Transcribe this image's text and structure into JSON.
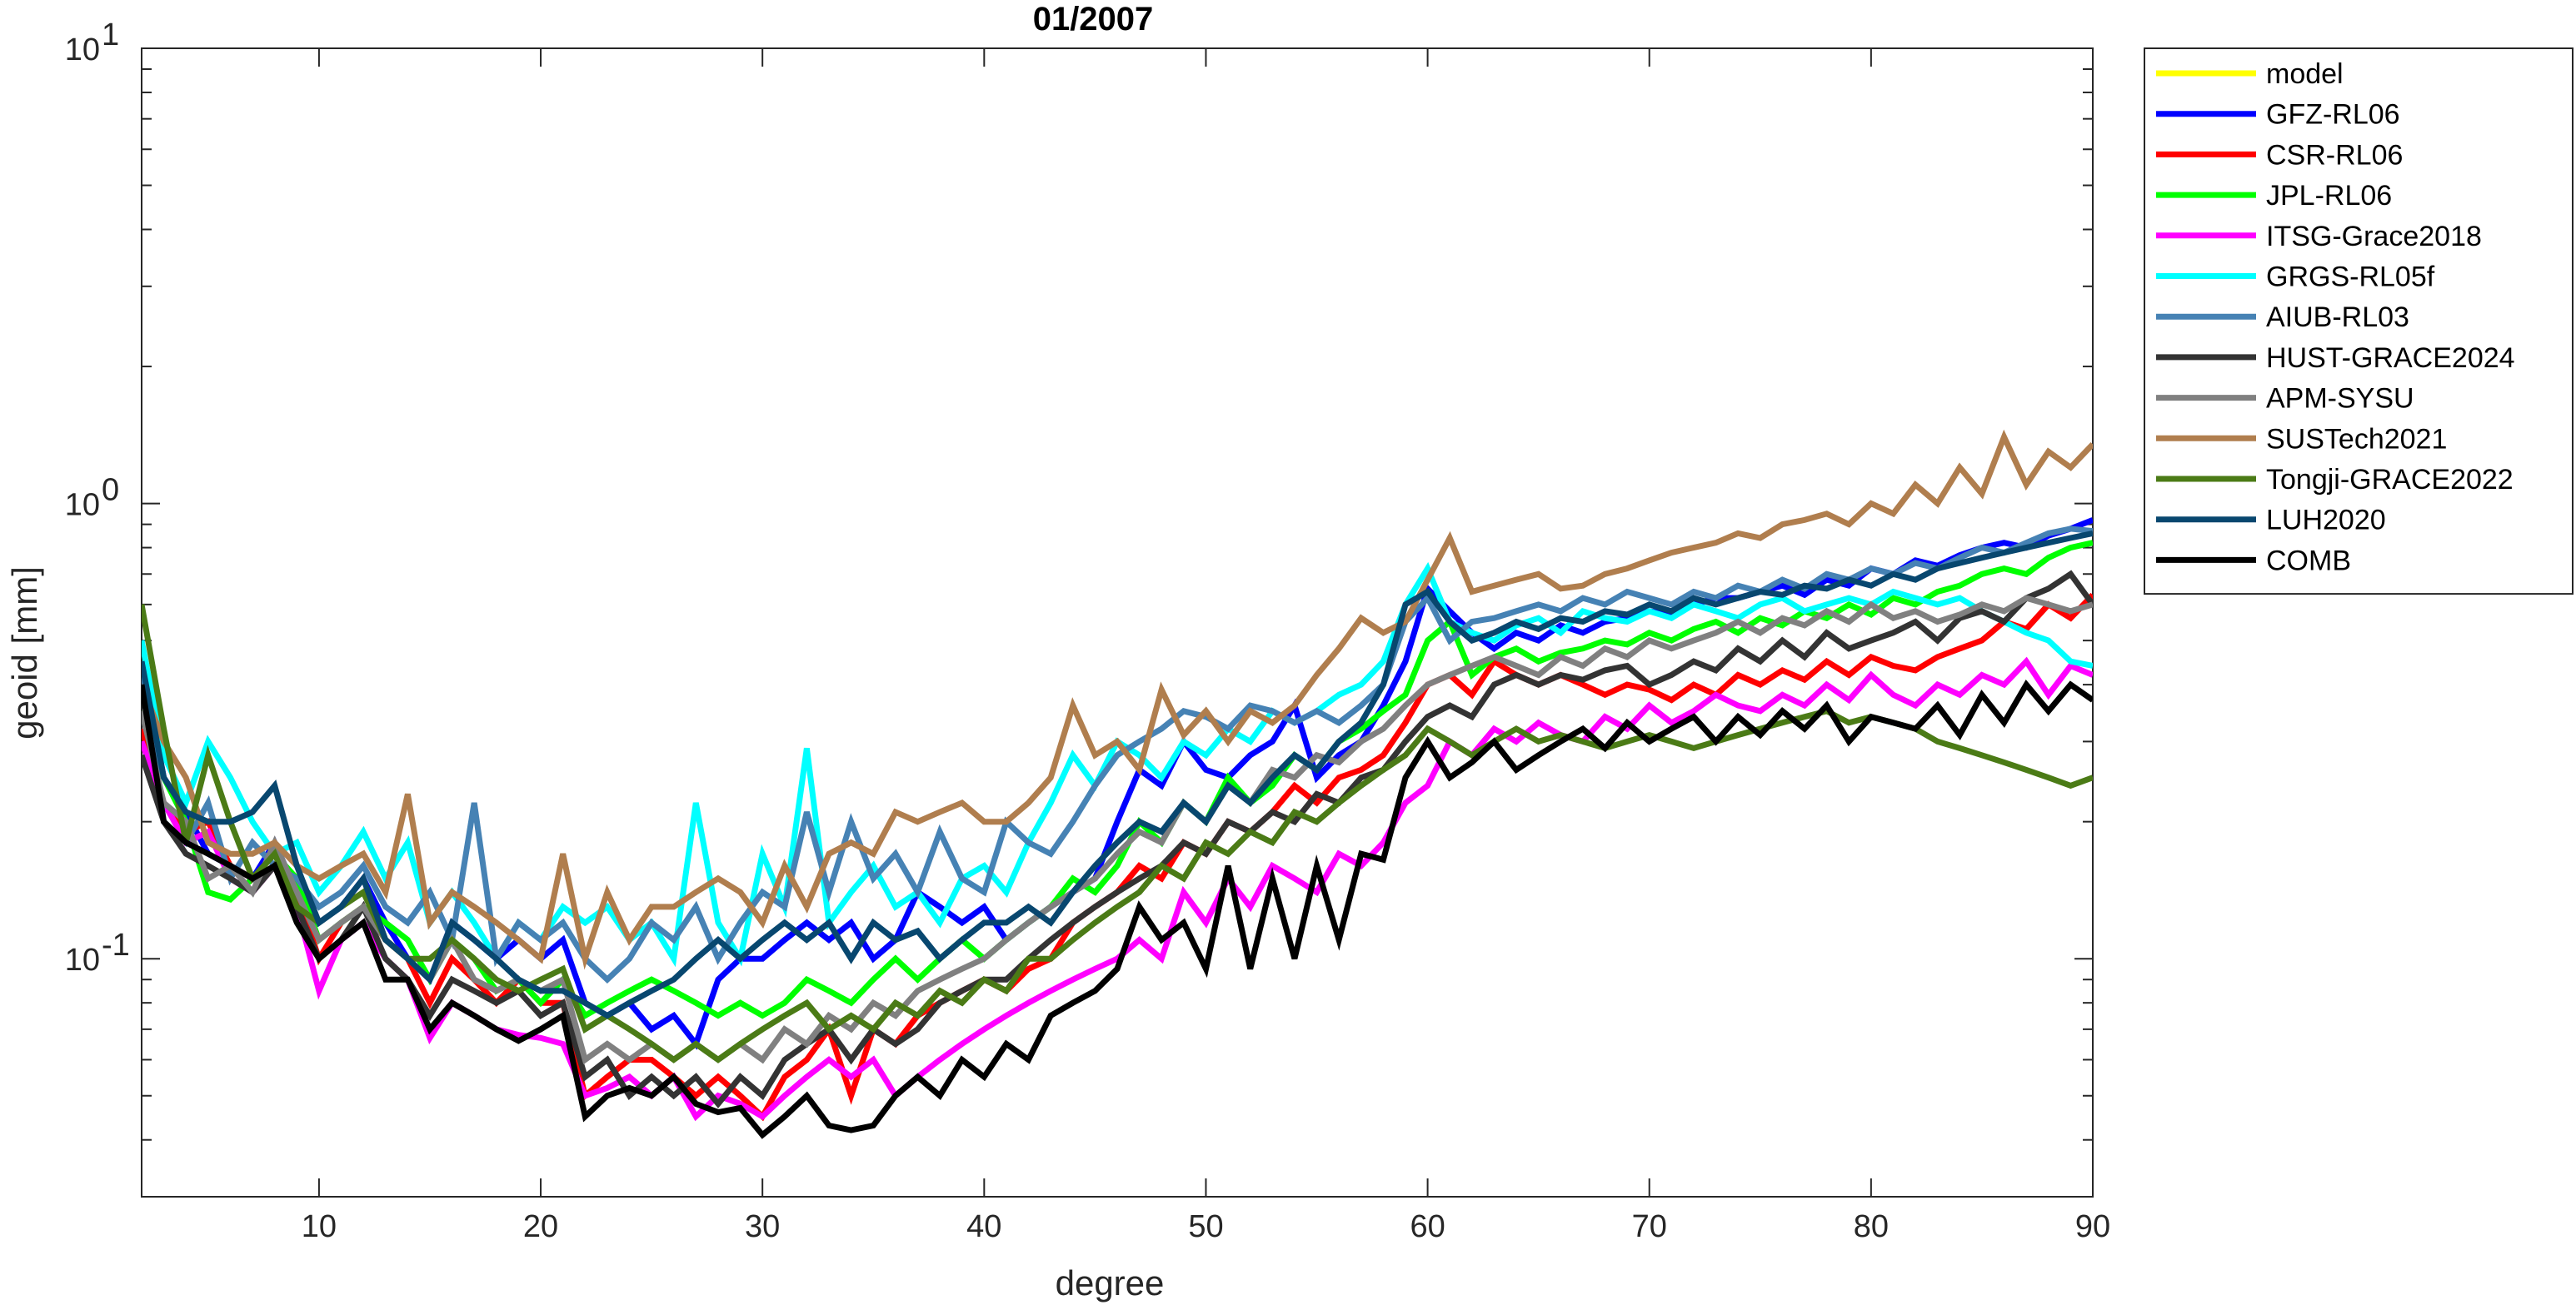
{
  "chart_data": {
    "type": "line",
    "title": "01/2007",
    "xlabel": "degree",
    "ylabel": "geoid [mm]",
    "xlim": [
      2,
      90
    ],
    "ylim": [
      0.03,
      10
    ],
    "yscale": "log",
    "xticks": [
      10,
      20,
      30,
      40,
      50,
      60,
      70,
      80,
      90
    ],
    "xtick_labels": [
      "10",
      "20",
      "30",
      "40",
      "50",
      "60",
      "70",
      "80",
      "90"
    ],
    "yticks": [
      {
        "value": 10,
        "base": "10",
        "exp": "1"
      },
      {
        "value": 1,
        "base": "10",
        "exp": "0"
      },
      {
        "value": 0.1,
        "base": "10",
        "exp": "-1"
      }
    ],
    "legend_position": "outside-right-top",
    "x": {
      "start": 2,
      "end": 90,
      "step": 1
    },
    "series": [
      {
        "name": "model",
        "color": "#FFFF00",
        "values": []
      },
      {
        "name": "GFZ-RL06",
        "color": "#0000FF",
        "values": [
          0.45,
          0.25,
          0.21,
          0.17,
          0.16,
          0.15,
          0.18,
          0.14,
          0.12,
          0.13,
          0.15,
          0.12,
          0.1,
          0.09,
          0.12,
          0.11,
          0.1,
          0.11,
          0.1,
          0.11,
          0.08,
          0.075,
          0.08,
          0.07,
          0.075,
          0.065,
          0.09,
          0.1,
          0.1,
          0.11,
          0.12,
          0.11,
          0.12,
          0.1,
          0.11,
          0.14,
          0.13,
          0.12,
          0.13,
          0.11,
          0.12,
          0.13,
          0.14,
          0.15,
          0.2,
          0.26,
          0.24,
          0.3,
          0.26,
          0.25,
          0.28,
          0.3,
          0.36,
          0.25,
          0.28,
          0.3,
          0.36,
          0.45,
          0.65,
          0.58,
          0.52,
          0.48,
          0.52,
          0.5,
          0.54,
          0.52,
          0.55,
          0.56,
          0.58,
          0.57,
          0.6,
          0.62,
          0.62,
          0.64,
          0.66,
          0.63,
          0.68,
          0.66,
          0.72,
          0.7,
          0.75,
          0.73,
          0.77,
          0.8,
          0.82,
          0.8,
          0.85,
          0.88,
          0.92
        ]
      },
      {
        "name": "CSR-RL06",
        "color": "#FF0000",
        "values": [
          0.32,
          0.22,
          0.19,
          0.2,
          0.16,
          0.15,
          0.17,
          0.14,
          0.1,
          0.12,
          0.13,
          0.11,
          0.1,
          0.08,
          0.1,
          0.09,
          0.08,
          0.09,
          0.08,
          0.08,
          0.05,
          0.055,
          0.06,
          0.06,
          0.055,
          0.05,
          0.055,
          0.05,
          0.045,
          0.055,
          0.06,
          0.07,
          0.05,
          0.07,
          0.065,
          0.075,
          0.08,
          0.085,
          0.09,
          0.085,
          0.095,
          0.1,
          0.12,
          0.13,
          0.14,
          0.16,
          0.15,
          0.18,
          0.17,
          0.2,
          0.19,
          0.21,
          0.24,
          0.22,
          0.25,
          0.26,
          0.28,
          0.33,
          0.4,
          0.42,
          0.38,
          0.45,
          0.42,
          0.4,
          0.42,
          0.4,
          0.38,
          0.4,
          0.39,
          0.37,
          0.4,
          0.38,
          0.42,
          0.4,
          0.43,
          0.41,
          0.45,
          0.42,
          0.46,
          0.44,
          0.43,
          0.46,
          0.48,
          0.5,
          0.55,
          0.53,
          0.6,
          0.56,
          0.63
        ]
      },
      {
        "name": "JPL-RL06",
        "color": "#00FF00",
        "values": [
          0.35,
          0.25,
          0.2,
          0.14,
          0.135,
          0.15,
          0.17,
          0.15,
          0.11,
          0.12,
          0.13,
          0.12,
          0.11,
          0.09,
          0.11,
          0.1,
          0.085,
          0.09,
          0.08,
          0.09,
          0.075,
          0.08,
          0.085,
          0.09,
          0.085,
          0.08,
          0.075,
          0.08,
          0.075,
          0.08,
          0.09,
          0.085,
          0.08,
          0.09,
          0.1,
          0.09,
          0.1,
          0.11,
          0.1,
          0.11,
          0.12,
          0.13,
          0.15,
          0.14,
          0.16,
          0.2,
          0.18,
          0.22,
          0.2,
          0.25,
          0.22,
          0.24,
          0.28,
          0.26,
          0.3,
          0.32,
          0.35,
          0.38,
          0.5,
          0.55,
          0.42,
          0.46,
          0.48,
          0.45,
          0.47,
          0.48,
          0.5,
          0.49,
          0.52,
          0.5,
          0.53,
          0.55,
          0.52,
          0.56,
          0.54,
          0.58,
          0.56,
          0.6,
          0.57,
          0.62,
          0.6,
          0.64,
          0.66,
          0.7,
          0.72,
          0.7,
          0.76,
          0.8,
          0.82
        ]
      },
      {
        "name": "ITSG-Grace2018",
        "color": "#FF00FF",
        "values": [
          0.3,
          0.22,
          0.18,
          0.19,
          0.15,
          0.14,
          0.16,
          0.13,
          0.085,
          0.11,
          0.12,
          0.1,
          0.09,
          0.067,
          0.08,
          0.075,
          0.07,
          0.068,
          0.067,
          0.065,
          0.05,
          0.052,
          0.055,
          0.05,
          0.055,
          0.045,
          0.05,
          0.048,
          0.045,
          0.05,
          0.055,
          0.06,
          0.055,
          0.06,
          0.05,
          0.055,
          0.06,
          0.065,
          0.07,
          0.075,
          0.08,
          0.085,
          0.09,
          0.095,
          0.1,
          0.11,
          0.1,
          0.14,
          0.12,
          0.15,
          0.13,
          0.16,
          0.15,
          0.14,
          0.17,
          0.16,
          0.18,
          0.22,
          0.24,
          0.3,
          0.28,
          0.32,
          0.3,
          0.33,
          0.31,
          0.3,
          0.34,
          0.32,
          0.36,
          0.33,
          0.35,
          0.38,
          0.36,
          0.35,
          0.38,
          0.36,
          0.4,
          0.37,
          0.42,
          0.38,
          0.36,
          0.4,
          0.38,
          0.42,
          0.4,
          0.45,
          0.38,
          0.44,
          0.42
        ]
      },
      {
        "name": "GRGS-RL05f",
        "color": "#00FFFF",
        "values": [
          0.5,
          0.28,
          0.22,
          0.3,
          0.25,
          0.2,
          0.17,
          0.18,
          0.14,
          0.16,
          0.19,
          0.15,
          0.18,
          0.12,
          0.14,
          0.12,
          0.1,
          0.12,
          0.11,
          0.13,
          0.12,
          0.13,
          0.11,
          0.12,
          0.1,
          0.22,
          0.12,
          0.1,
          0.17,
          0.13,
          0.29,
          0.12,
          0.14,
          0.16,
          0.13,
          0.14,
          0.12,
          0.15,
          0.16,
          0.14,
          0.18,
          0.22,
          0.28,
          0.24,
          0.3,
          0.28,
          0.25,
          0.3,
          0.28,
          0.32,
          0.3,
          0.35,
          0.33,
          0.35,
          0.38,
          0.4,
          0.45,
          0.6,
          0.72,
          0.55,
          0.52,
          0.5,
          0.54,
          0.56,
          0.52,
          0.58,
          0.56,
          0.55,
          0.58,
          0.56,
          0.6,
          0.58,
          0.56,
          0.6,
          0.62,
          0.58,
          0.6,
          0.62,
          0.6,
          0.64,
          0.62,
          0.6,
          0.62,
          0.58,
          0.55,
          0.52,
          0.5,
          0.45,
          0.44
        ]
      },
      {
        "name": "AIUB-RL03",
        "color": "#4682B4",
        "values": [
          0.45,
          0.2,
          0.18,
          0.22,
          0.15,
          0.18,
          0.16,
          0.15,
          0.13,
          0.14,
          0.16,
          0.13,
          0.12,
          0.14,
          0.11,
          0.22,
          0.1,
          0.12,
          0.11,
          0.12,
          0.1,
          0.09,
          0.1,
          0.12,
          0.11,
          0.13,
          0.1,
          0.12,
          0.14,
          0.13,
          0.21,
          0.14,
          0.2,
          0.15,
          0.17,
          0.14,
          0.19,
          0.15,
          0.14,
          0.2,
          0.18,
          0.17,
          0.2,
          0.24,
          0.28,
          0.3,
          0.32,
          0.35,
          0.34,
          0.32,
          0.36,
          0.35,
          0.33,
          0.35,
          0.33,
          0.36,
          0.4,
          0.55,
          0.62,
          0.5,
          0.55,
          0.56,
          0.58,
          0.6,
          0.58,
          0.62,
          0.6,
          0.64,
          0.62,
          0.6,
          0.64,
          0.62,
          0.66,
          0.64,
          0.68,
          0.65,
          0.7,
          0.68,
          0.72,
          0.7,
          0.74,
          0.72,
          0.76,
          0.8,
          0.78,
          0.82,
          0.86,
          0.88,
          0.87
        ]
      },
      {
        "name": "HUST-GRACE2024",
        "color": "#333333",
        "values": [
          0.28,
          0.2,
          0.17,
          0.16,
          0.15,
          0.14,
          0.16,
          0.13,
          0.1,
          0.11,
          0.13,
          0.1,
          0.09,
          0.075,
          0.09,
          0.085,
          0.08,
          0.085,
          0.075,
          0.08,
          0.055,
          0.06,
          0.05,
          0.055,
          0.05,
          0.055,
          0.048,
          0.055,
          0.05,
          0.06,
          0.065,
          0.07,
          0.06,
          0.07,
          0.065,
          0.07,
          0.08,
          0.085,
          0.09,
          0.09,
          0.1,
          0.11,
          0.12,
          0.13,
          0.14,
          0.15,
          0.16,
          0.18,
          0.17,
          0.2,
          0.19,
          0.21,
          0.2,
          0.23,
          0.22,
          0.25,
          0.26,
          0.3,
          0.34,
          0.36,
          0.34,
          0.4,
          0.42,
          0.4,
          0.42,
          0.41,
          0.43,
          0.44,
          0.4,
          0.42,
          0.45,
          0.43,
          0.48,
          0.45,
          0.5,
          0.46,
          0.52,
          0.48,
          0.5,
          0.52,
          0.55,
          0.5,
          0.56,
          0.58,
          0.55,
          0.62,
          0.65,
          0.7,
          0.6
        ]
      },
      {
        "name": "APM-SYSU",
        "color": "#808080",
        "values": [
          0.35,
          0.22,
          0.2,
          0.15,
          0.16,
          0.14,
          0.18,
          0.14,
          0.11,
          0.12,
          0.13,
          0.11,
          0.1,
          0.09,
          0.11,
          0.09,
          0.085,
          0.09,
          0.085,
          0.09,
          0.06,
          0.065,
          0.06,
          0.065,
          0.06,
          0.065,
          0.06,
          0.065,
          0.06,
          0.07,
          0.065,
          0.075,
          0.07,
          0.08,
          0.075,
          0.085,
          0.09,
          0.095,
          0.1,
          0.11,
          0.12,
          0.13,
          0.14,
          0.15,
          0.17,
          0.19,
          0.18,
          0.22,
          0.2,
          0.24,
          0.22,
          0.26,
          0.25,
          0.28,
          0.27,
          0.3,
          0.32,
          0.36,
          0.4,
          0.42,
          0.44,
          0.46,
          0.44,
          0.42,
          0.46,
          0.44,
          0.48,
          0.46,
          0.5,
          0.48,
          0.5,
          0.52,
          0.55,
          0.52,
          0.56,
          0.54,
          0.58,
          0.55,
          0.6,
          0.56,
          0.58,
          0.55,
          0.57,
          0.6,
          0.58,
          0.62,
          0.6,
          0.58,
          0.6
        ]
      },
      {
        "name": "SUSTech2021",
        "color": "#B07E4E",
        "values": [
          0.4,
          0.3,
          0.25,
          0.18,
          0.17,
          0.17,
          0.18,
          0.16,
          0.15,
          0.16,
          0.17,
          0.14,
          0.23,
          0.12,
          0.14,
          0.13,
          0.12,
          0.11,
          0.1,
          0.17,
          0.1,
          0.14,
          0.11,
          0.13,
          0.13,
          0.14,
          0.15,
          0.14,
          0.12,
          0.16,
          0.13,
          0.17,
          0.18,
          0.17,
          0.21,
          0.2,
          0.21,
          0.22,
          0.2,
          0.2,
          0.22,
          0.25,
          0.36,
          0.28,
          0.3,
          0.26,
          0.39,
          0.31,
          0.35,
          0.3,
          0.35,
          0.33,
          0.36,
          0.42,
          0.48,
          0.56,
          0.52,
          0.55,
          0.68,
          0.84,
          0.64,
          0.66,
          0.68,
          0.7,
          0.65,
          0.66,
          0.7,
          0.72,
          0.75,
          0.78,
          0.8,
          0.82,
          0.86,
          0.84,
          0.9,
          0.92,
          0.95,
          0.9,
          1.0,
          0.95,
          1.1,
          1.0,
          1.2,
          1.05,
          1.4,
          1.1,
          1.3,
          1.2,
          1.35
        ]
      },
      {
        "name": "Tongji-GRACE2022",
        "color": "#4B7B16",
        "values": [
          0.6,
          0.32,
          0.18,
          0.28,
          0.2,
          0.15,
          0.17,
          0.13,
          0.12,
          0.13,
          0.14,
          0.11,
          0.1,
          0.1,
          0.11,
          0.1,
          0.09,
          0.085,
          0.09,
          0.095,
          0.07,
          0.075,
          0.07,
          0.065,
          0.06,
          0.065,
          0.06,
          0.065,
          0.07,
          0.075,
          0.08,
          0.07,
          0.075,
          0.07,
          0.08,
          0.075,
          0.085,
          0.08,
          0.09,
          0.085,
          0.1,
          0.1,
          0.11,
          0.12,
          0.13,
          0.14,
          0.16,
          0.15,
          0.18,
          0.17,
          0.19,
          0.18,
          0.21,
          0.2,
          0.22,
          0.24,
          0.26,
          0.28,
          0.32,
          0.3,
          0.28,
          0.3,
          0.32,
          0.3,
          0.31,
          0.3,
          0.29,
          0.3,
          0.31,
          0.3,
          0.29,
          0.3,
          0.31,
          0.32,
          0.33,
          0.34,
          0.35,
          0.33,
          0.34,
          0.33,
          0.32,
          0.3,
          0.29,
          0.28,
          0.27,
          0.26,
          0.25,
          0.24,
          0.25
        ]
      },
      {
        "name": "LUH2020",
        "color": "#08476F",
        "values": [
          0.45,
          0.25,
          0.21,
          0.2,
          0.2,
          0.21,
          0.24,
          0.16,
          0.12,
          0.13,
          0.15,
          0.11,
          0.1,
          0.09,
          0.12,
          0.11,
          0.1,
          0.09,
          0.085,
          0.085,
          0.08,
          0.075,
          0.08,
          0.085,
          0.09,
          0.1,
          0.11,
          0.1,
          0.11,
          0.12,
          0.11,
          0.12,
          0.1,
          0.12,
          0.11,
          0.115,
          0.1,
          0.11,
          0.12,
          0.12,
          0.13,
          0.12,
          0.14,
          0.16,
          0.18,
          0.2,
          0.19,
          0.22,
          0.2,
          0.24,
          0.22,
          0.25,
          0.28,
          0.26,
          0.3,
          0.33,
          0.4,
          0.6,
          0.64,
          0.55,
          0.5,
          0.52,
          0.55,
          0.53,
          0.56,
          0.55,
          0.58,
          0.57,
          0.6,
          0.58,
          0.62,
          0.6,
          0.62,
          0.64,
          0.63,
          0.66,
          0.65,
          0.68,
          0.66,
          0.7,
          0.68,
          0.72,
          0.74,
          0.76,
          0.78,
          0.8,
          0.82,
          0.84,
          0.86
        ]
      },
      {
        "name": "COMB",
        "color": "#000000",
        "values": [
          0.4,
          0.2,
          0.18,
          0.17,
          0.16,
          0.15,
          0.16,
          0.12,
          0.1,
          0.11,
          0.12,
          0.09,
          0.09,
          0.07,
          0.08,
          0.075,
          0.07,
          0.066,
          0.07,
          0.075,
          0.045,
          0.05,
          0.052,
          0.05,
          0.055,
          0.048,
          0.046,
          0.047,
          0.041,
          0.045,
          0.05,
          0.043,
          0.042,
          0.043,
          0.05,
          0.055,
          0.05,
          0.06,
          0.055,
          0.065,
          0.06,
          0.075,
          0.08,
          0.085,
          0.095,
          0.13,
          0.11,
          0.12,
          0.095,
          0.16,
          0.095,
          0.15,
          0.1,
          0.16,
          0.11,
          0.17,
          0.165,
          0.25,
          0.3,
          0.25,
          0.27,
          0.3,
          0.26,
          0.28,
          0.3,
          0.32,
          0.29,
          0.33,
          0.3,
          0.32,
          0.34,
          0.3,
          0.34,
          0.31,
          0.35,
          0.32,
          0.36,
          0.3,
          0.34,
          0.33,
          0.32,
          0.36,
          0.31,
          0.38,
          0.33,
          0.4,
          0.35,
          0.4,
          0.37
        ]
      }
    ]
  }
}
